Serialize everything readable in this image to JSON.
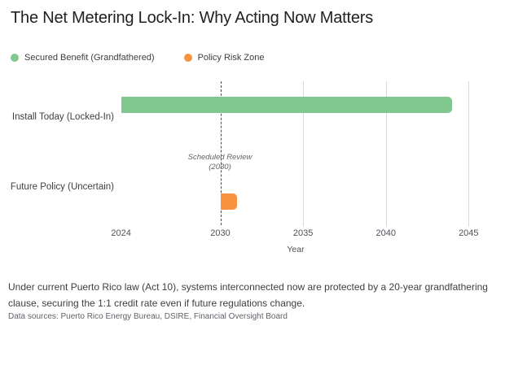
{
  "title": "The Net Metering Lock-In: Why Acting Now Matters",
  "legend": {
    "items": [
      {
        "label": "Secured Benefit (Grandfathered)",
        "color": "#80c790"
      },
      {
        "label": "Policy Risk Zone",
        "color": "#f7923e"
      }
    ]
  },
  "chart_data": {
    "type": "bar",
    "orientation": "horizontal",
    "title": "The Net Metering Lock-In: Why Acting Now Matters",
    "categories": [
      "Install Today (Locked-In)",
      "Future Policy (Uncertain)"
    ],
    "series": [
      {
        "name": "Secured Benefit (Grandfathered)",
        "category": "Install Today (Locked-In)",
        "start_year": 2024,
        "end_year": 2044,
        "color": "#80c790"
      },
      {
        "name": "Policy Risk Zone",
        "category": "Future Policy (Uncertain)",
        "start_year": 2030,
        "end_year": 2031,
        "color": "#f7923e"
      }
    ],
    "xlabel": "Year",
    "x_ticks": [
      "2024",
      "2030",
      "2035",
      "2040",
      "2045"
    ],
    "xlim": [
      2024,
      2046
    ],
    "gridline_years": [
      2035,
      2040,
      2045
    ],
    "grid": "vertical-only",
    "legend_position": "top-left",
    "annotation": {
      "line1": "Scheduled Review",
      "line2": "(2030)",
      "x": 2030,
      "style": "dashed-vertical-line"
    }
  },
  "notes": {
    "body": "Under current Puerto Rico law (Act 10), systems interconnected now are protected by a 20-year grandfathering clause, securing the 1:1 credit rate even if future regulations change.",
    "source": "Data sources: Puerto Rico Energy Bureau, DSIRE, Financial Oversight Board"
  }
}
